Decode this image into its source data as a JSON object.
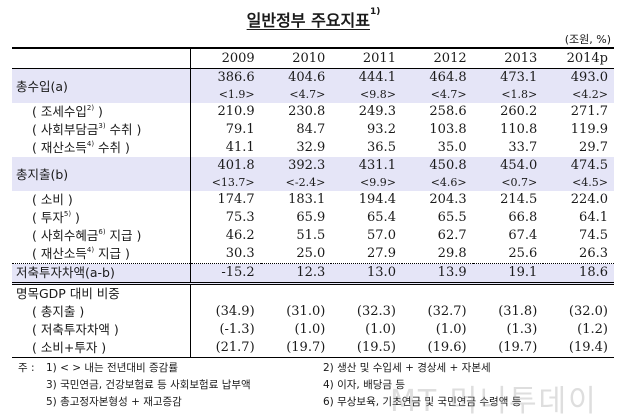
{
  "title": "일반정부 주요지표",
  "title_note": "1)",
  "unit": "(조원, %)",
  "columns": [
    "2009",
    "2010",
    "2011",
    "2012",
    "2013",
    "2014p"
  ],
  "rows": {
    "revenue": {
      "label": "총수입(a)",
      "values": [
        "386.6",
        "404.6",
        "444.1",
        "464.8",
        "473.1",
        "493.0"
      ],
      "growth": [
        "<1.9>",
        "<4.7>",
        "<9.8>",
        "<4.7>",
        "<1.8>",
        "<4.2>"
      ]
    },
    "tax": {
      "label": "( 조세수입",
      "note": "2)",
      "suffix": " )",
      "values": [
        "210.9",
        "230.8",
        "249.3",
        "258.6",
        "260.2",
        "271.7"
      ]
    },
    "social_contrib": {
      "label": "( 사회부담금",
      "note": "3)",
      "suffix": " 수취 )",
      "values": [
        "79.1",
        "84.7",
        "93.2",
        "103.8",
        "110.8",
        "119.9"
      ]
    },
    "property_income_recv": {
      "label": "( 재산소득",
      "note": "4)",
      "suffix": " 수취 )",
      "values": [
        "41.1",
        "32.9",
        "36.5",
        "35.0",
        "33.7",
        "29.7"
      ]
    },
    "expenditure": {
      "label": "총지출(b)",
      "values": [
        "401.8",
        "392.3",
        "431.1",
        "450.8",
        "454.0",
        "474.5"
      ],
      "growth": [
        "<13.7>",
        "<-2.4>",
        "<9.9>",
        "<4.6>",
        "<0.7>",
        "<4.5>"
      ]
    },
    "consumption": {
      "label": "( 소비 )",
      "values": [
        "174.7",
        "183.1",
        "194.4",
        "204.3",
        "214.5",
        "224.0"
      ]
    },
    "investment": {
      "label": "( 투자",
      "note": "5)",
      "suffix": " )",
      "values": [
        "75.3",
        "65.9",
        "65.4",
        "65.5",
        "66.8",
        "64.1"
      ]
    },
    "social_benefits": {
      "label": "( 사회수혜금",
      "note": "6)",
      "suffix": " 지급 )",
      "values": [
        "46.2",
        "51.5",
        "57.0",
        "62.7",
        "67.4",
        "74.5"
      ]
    },
    "property_income_paid": {
      "label": "( 재산소득",
      "note": "4)",
      "suffix": " 지급 )",
      "values": [
        "30.3",
        "25.0",
        "27.9",
        "29.8",
        "25.6",
        "26.3"
      ]
    },
    "balance": {
      "label": "저축투자차액(a-b)",
      "values": [
        "-15.2",
        "12.3",
        "13.0",
        "13.9",
        "19.1",
        "18.6"
      ]
    },
    "gdp_header": {
      "label": "명목GDP 대비 비중"
    },
    "gdp_expenditure": {
      "label": "( 총지출 )",
      "values": [
        "(34.9)",
        "(31.0)",
        "(32.3)",
        "(32.7)",
        "(31.8)",
        "(32.0)"
      ]
    },
    "gdp_balance": {
      "label": "( 저축투자차액 )",
      "values": [
        "(-1.3)",
        "(1.0)",
        "(1.0)",
        "(1.0)",
        "(1.3)",
        "(1.2)"
      ]
    },
    "gdp_cons_inv": {
      "label": "( 소비+투자 )",
      "values": [
        "(21.7)",
        "(19.7)",
        "(19.5)",
        "(19.6)",
        "(19.7)",
        "(19.4)"
      ]
    }
  },
  "notes": {
    "prefix": "주 :",
    "n1": "1) < > 내는 전년대비 증감률",
    "n2": "2) 생산 및 수입세 + 경상세 + 자본세",
    "n3": "3) 국민연금, 건강보험료 등 사회보험료 납부액",
    "n4": "4) 이자, 배당금 등",
    "n5": "5) 총고정자본형성 + 재고증감",
    "n6": "6) 무상보육, 기초연금 및 국민연금 수령액 등"
  },
  "watermark": "MT 머니투데이",
  "colors": {
    "row_shade": "#e5e5f7"
  }
}
